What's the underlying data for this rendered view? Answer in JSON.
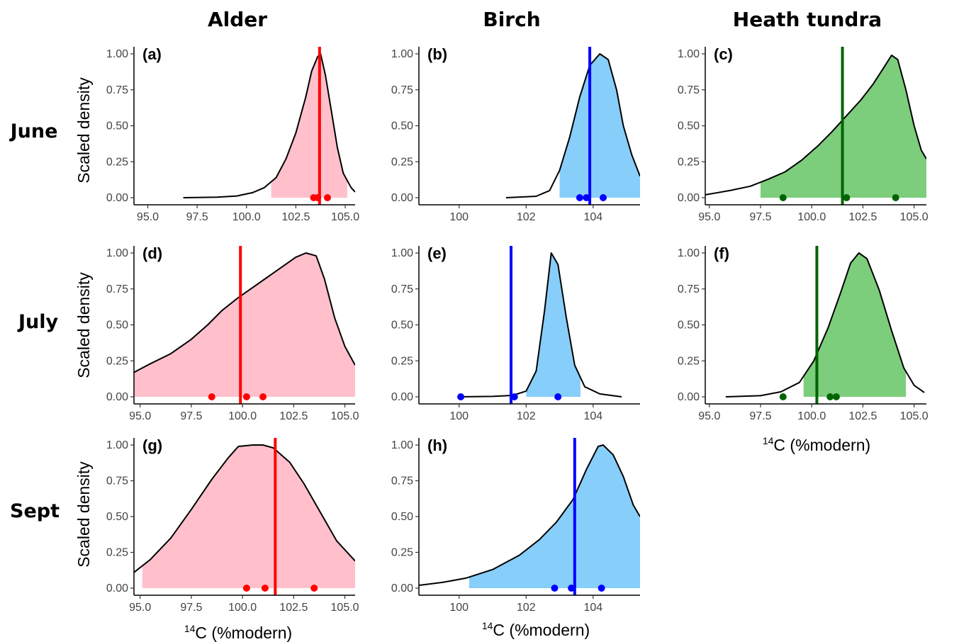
{
  "col_titles": [
    "Alder",
    "Birch",
    "Heath tundra"
  ],
  "row_titles": [
    "June",
    "July",
    "Sept"
  ],
  "axis": {
    "ylabel": "Scaled density",
    "xlabel_sup": "14",
    "xlabel_rest": "C (%modern)"
  },
  "colors": {
    "alder_fill": "#FFC0CB",
    "alder_line": "#FF0000",
    "birch_fill": "#87CEFA",
    "birch_line": "#0000FF",
    "heath_fill": "#7CCD7C",
    "heath_line": "#006400",
    "curve": "#000000"
  },
  "chart_data": [
    {
      "type": "area",
      "label": "(a)",
      "series": "Alder",
      "month": "June",
      "xlim": [
        94.3,
        105.5
      ],
      "ylim": [
        0,
        1
      ],
      "xticks": [
        95,
        97.5,
        100,
        102.5,
        105
      ],
      "xtick_labels": [
        "95.0",
        "97.5",
        "100.0",
        "102.5",
        "105.0"
      ],
      "yticks": [
        0,
        0.25,
        0.5,
        0.75,
        1
      ],
      "ytick_labels": [
        "0.00",
        "0.25",
        "0.50",
        "0.75",
        "1.00"
      ],
      "curve": [
        [
          96.8,
          0.0
        ],
        [
          98.5,
          0.004
        ],
        [
          99.5,
          0.012
        ],
        [
          100.3,
          0.035
        ],
        [
          100.9,
          0.07
        ],
        [
          101.5,
          0.14
        ],
        [
          102.0,
          0.27
        ],
        [
          102.5,
          0.45
        ],
        [
          103.0,
          0.7
        ],
        [
          103.3,
          0.88
        ],
        [
          103.6,
          0.98
        ],
        [
          103.75,
          1.0
        ],
        [
          104.0,
          0.85
        ],
        [
          104.3,
          0.6
        ],
        [
          104.6,
          0.35
        ],
        [
          104.9,
          0.17
        ],
        [
          105.3,
          0.07
        ],
        [
          105.5,
          0.04
        ]
      ],
      "fill_range": [
        101.25,
        105.1
      ],
      "vline": 103.7,
      "points": [
        103.4,
        103.6,
        104.1
      ]
    },
    {
      "type": "area",
      "label": "(b)",
      "series": "Birch",
      "month": "June",
      "xlim": [
        98.8,
        105.4
      ],
      "ylim": [
        0,
        1
      ],
      "xticks": [
        100,
        102,
        104
      ],
      "xtick_labels": [
        "100",
        "102",
        "104"
      ],
      "yticks": [
        0,
        0.25,
        0.5,
        0.75,
        1
      ],
      "ytick_labels": [
        "0.00",
        "0.25",
        "0.50",
        "0.75",
        "1.00"
      ],
      "curve": [
        [
          101.4,
          0.0
        ],
        [
          102.3,
          0.01
        ],
        [
          102.7,
          0.05
        ],
        [
          103.0,
          0.19
        ],
        [
          103.3,
          0.42
        ],
        [
          103.6,
          0.7
        ],
        [
          103.9,
          0.92
        ],
        [
          104.2,
          1.0
        ],
        [
          104.45,
          0.96
        ],
        [
          104.7,
          0.75
        ],
        [
          104.9,
          0.5
        ],
        [
          105.15,
          0.3
        ],
        [
          105.4,
          0.15
        ]
      ],
      "fill_range": [
        103.0,
        105.4
      ],
      "vline": 103.9,
      "points": [
        103.6,
        103.8,
        104.3
      ]
    },
    {
      "type": "area",
      "label": "(c)",
      "series": "Heath tundra",
      "month": "June",
      "xlim": [
        94.8,
        105.6
      ],
      "ylim": [
        0,
        1
      ],
      "xticks": [
        95,
        97.5,
        100,
        102.5,
        105
      ],
      "xtick_labels": [
        "95.0",
        "97.5",
        "100.0",
        "102.5",
        "105.0"
      ],
      "yticks": [
        0,
        0.25,
        0.5,
        0.75,
        1
      ],
      "ytick_labels": [
        "0.00",
        "0.25",
        "0.50",
        "0.75",
        "1.00"
      ],
      "curve": [
        [
          94.8,
          0.02
        ],
        [
          96.0,
          0.05
        ],
        [
          97.0,
          0.08
        ],
        [
          97.9,
          0.13
        ],
        [
          98.7,
          0.18
        ],
        [
          99.5,
          0.26
        ],
        [
          100.3,
          0.36
        ],
        [
          101.0,
          0.46
        ],
        [
          101.7,
          0.57
        ],
        [
          102.4,
          0.68
        ],
        [
          103.0,
          0.79
        ],
        [
          103.5,
          0.9
        ],
        [
          103.9,
          0.99
        ],
        [
          104.2,
          0.96
        ],
        [
          104.6,
          0.75
        ],
        [
          105.0,
          0.5
        ],
        [
          105.35,
          0.33
        ],
        [
          105.6,
          0.27
        ]
      ],
      "fill_range": [
        97.5,
        105.6
      ],
      "vline": 101.5,
      "points": [
        98.6,
        101.7,
        104.1
      ]
    },
    {
      "type": "area",
      "label": "(d)",
      "series": "Alder",
      "month": "July",
      "xlim": [
        94.7,
        105.5
      ],
      "ylim": [
        0,
        1
      ],
      "xticks": [
        95,
        97.5,
        100,
        102.5,
        105
      ],
      "xtick_labels": [
        "95.0",
        "97.5",
        "100.0",
        "102.5",
        "105.0"
      ],
      "yticks": [
        0,
        0.25,
        0.5,
        0.75,
        1
      ],
      "ytick_labels": [
        "0.00",
        "0.25",
        "0.50",
        "0.75",
        "1.00"
      ],
      "curve": [
        [
          94.7,
          0.17
        ],
        [
          95.5,
          0.23
        ],
        [
          96.5,
          0.3
        ],
        [
          97.5,
          0.4
        ],
        [
          98.3,
          0.5
        ],
        [
          99.0,
          0.6
        ],
        [
          99.8,
          0.69
        ],
        [
          100.5,
          0.76
        ],
        [
          101.2,
          0.83
        ],
        [
          101.9,
          0.9
        ],
        [
          102.6,
          0.97
        ],
        [
          103.1,
          1.0
        ],
        [
          103.6,
          0.98
        ],
        [
          104.0,
          0.82
        ],
        [
          104.5,
          0.55
        ],
        [
          105.0,
          0.35
        ],
        [
          105.5,
          0.22
        ]
      ],
      "fill_range": [
        94.7,
        105.5
      ],
      "vline": 99.9,
      "points": [
        98.5,
        100.2,
        101.0
      ]
    },
    {
      "type": "area",
      "label": "(e)",
      "series": "Birch",
      "month": "July",
      "xlim": [
        98.8,
        105.4
      ],
      "ylim": [
        0,
        1
      ],
      "xticks": [
        100,
        102,
        104
      ],
      "xtick_labels": [
        "100",
        "102",
        "104"
      ],
      "yticks": [
        0,
        0.25,
        0.5,
        0.75,
        1
      ],
      "ytick_labels": [
        "0.00",
        "0.25",
        "0.50",
        "0.75",
        "1.00"
      ],
      "curve": [
        [
          100.0,
          0.0
        ],
        [
          101.0,
          0.003
        ],
        [
          101.6,
          0.01
        ],
        [
          102.0,
          0.04
        ],
        [
          102.3,
          0.18
        ],
        [
          102.55,
          0.6
        ],
        [
          102.75,
          1.0
        ],
        [
          102.95,
          0.92
        ],
        [
          103.2,
          0.55
        ],
        [
          103.45,
          0.22
        ],
        [
          103.75,
          0.07
        ],
        [
          104.2,
          0.02
        ],
        [
          104.85,
          0.0
        ]
      ],
      "fill_range": [
        102.0,
        103.62
      ],
      "vline": 101.55,
      "points": [
        100.05,
        101.65,
        102.95
      ]
    },
    {
      "type": "area",
      "label": "(f)",
      "series": "Heath tundra",
      "month": "July",
      "xlim": [
        94.8,
        105.6
      ],
      "ylim": [
        0,
        1
      ],
      "xticks": [
        95,
        97.5,
        100,
        102.5,
        105
      ],
      "xtick_labels": [
        "95.0",
        "97.5",
        "100.0",
        "102.5",
        "105.0"
      ],
      "yticks": [
        0,
        0.25,
        0.5,
        0.75,
        1
      ],
      "ytick_labels": [
        "0.00",
        "0.25",
        "0.50",
        "0.75",
        "1.00"
      ],
      "curve": [
        [
          95.8,
          0.0
        ],
        [
          97.5,
          0.008
        ],
        [
          98.5,
          0.035
        ],
        [
          99.4,
          0.1
        ],
        [
          100.1,
          0.25
        ],
        [
          100.8,
          0.48
        ],
        [
          101.4,
          0.72
        ],
        [
          101.9,
          0.93
        ],
        [
          102.3,
          1.0
        ],
        [
          102.7,
          0.96
        ],
        [
          103.3,
          0.74
        ],
        [
          103.9,
          0.46
        ],
        [
          104.5,
          0.2
        ],
        [
          105.0,
          0.08
        ],
        [
          105.5,
          0.03
        ]
      ],
      "fill_range": [
        99.6,
        104.6
      ],
      "vline": 100.25,
      "points": [
        98.6,
        100.9,
        101.2
      ]
    },
    {
      "type": "area",
      "label": "(g)",
      "series": "Alder",
      "month": "Sept",
      "xlim": [
        94.7,
        105.5
      ],
      "ylim": [
        0,
        1
      ],
      "xticks": [
        95,
        97.5,
        100,
        102.5,
        105
      ],
      "xtick_labels": [
        "95.0",
        "97.5",
        "100.0",
        "102.5",
        "105.0"
      ],
      "yticks": [
        0,
        0.25,
        0.5,
        0.75,
        1
      ],
      "ytick_labels": [
        "0.00",
        "0.25",
        "0.50",
        "0.75",
        "1.00"
      ],
      "curve": [
        [
          94.7,
          0.11
        ],
        [
          95.5,
          0.2
        ],
        [
          96.5,
          0.35
        ],
        [
          97.5,
          0.55
        ],
        [
          98.5,
          0.76
        ],
        [
          99.3,
          0.91
        ],
        [
          99.8,
          0.99
        ],
        [
          100.5,
          1.0
        ],
        [
          101.0,
          1.0
        ],
        [
          101.5,
          0.98
        ],
        [
          102.3,
          0.88
        ],
        [
          103.0,
          0.73
        ],
        [
          103.8,
          0.53
        ],
        [
          104.6,
          0.33
        ],
        [
          105.5,
          0.19
        ]
      ],
      "fill_range": [
        95.1,
        105.5
      ],
      "vline": 101.6,
      "points": [
        100.2,
        101.1,
        103.5
      ]
    },
    {
      "type": "area",
      "label": "(h)",
      "series": "Birch",
      "month": "Sept",
      "xlim": [
        98.8,
        105.4
      ],
      "ylim": [
        0,
        1
      ],
      "xticks": [
        100,
        102,
        104
      ],
      "xtick_labels": [
        "100",
        "102",
        "104"
      ],
      "yticks": [
        0,
        0.25,
        0.5,
        0.75,
        1
      ],
      "ytick_labels": [
        "0.00",
        "0.25",
        "0.50",
        "0.75",
        "1.00"
      ],
      "curve": [
        [
          98.8,
          0.02
        ],
        [
          99.5,
          0.04
        ],
        [
          100.2,
          0.07
        ],
        [
          101.0,
          0.13
        ],
        [
          101.8,
          0.23
        ],
        [
          102.4,
          0.34
        ],
        [
          102.9,
          0.46
        ],
        [
          103.4,
          0.62
        ],
        [
          103.8,
          0.83
        ],
        [
          104.15,
          0.99
        ],
        [
          104.3,
          1.0
        ],
        [
          104.6,
          0.93
        ],
        [
          104.9,
          0.78
        ],
        [
          105.2,
          0.58
        ],
        [
          105.4,
          0.5
        ]
      ],
      "fill_range": [
        100.3,
        105.4
      ],
      "vline": 103.45,
      "points": [
        102.85,
        103.35,
        104.25
      ]
    }
  ]
}
